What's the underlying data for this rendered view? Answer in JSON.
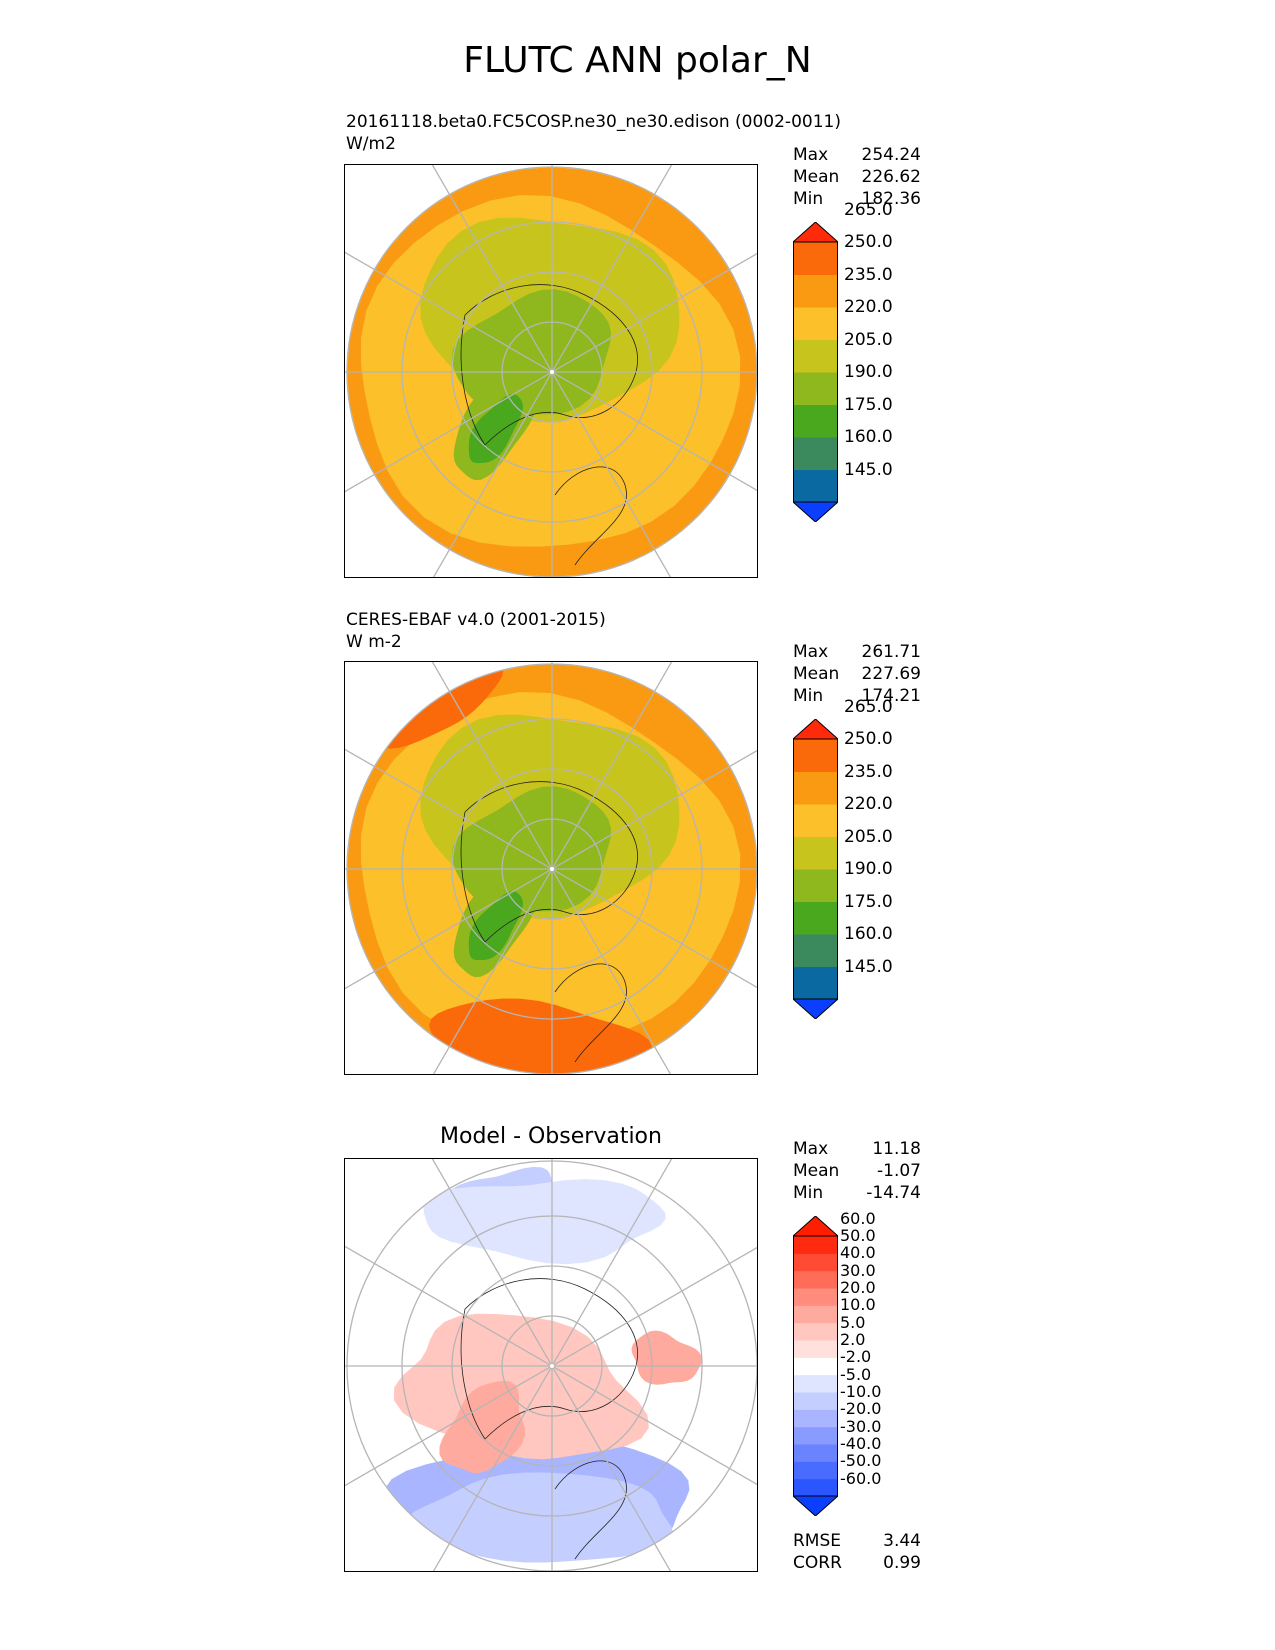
{
  "title": "FLUTC ANN polar_N",
  "panels": [
    {
      "id": "model",
      "title": "20161118.beta0.FC5COSP.ne30_ne30.edison (0002-0011)",
      "units": "W/m2",
      "stats": [
        {
          "label": "Max",
          "value": "254.24"
        },
        {
          "label": "Mean",
          "value": "226.62"
        },
        {
          "label": "Min",
          "value": "182.36"
        }
      ]
    },
    {
      "id": "obs",
      "title": "CERES-EBAF v4.0 (2001-2015)",
      "units": "W m-2",
      "stats": [
        {
          "label": "Max",
          "value": "261.71"
        },
        {
          "label": "Mean",
          "value": "227.69"
        },
        {
          "label": "Min",
          "value": "174.21"
        }
      ]
    },
    {
      "id": "diff",
      "title": "Model - Observation",
      "stats": [
        {
          "label": "Max",
          "value": "11.18"
        },
        {
          "label": "Mean",
          "value": "-1.07"
        },
        {
          "label": "Min",
          "value": "-14.74"
        }
      ],
      "metrics": [
        {
          "label": "RMSE",
          "value": "3.44"
        },
        {
          "label": "CORR",
          "value": "0.99"
        }
      ]
    }
  ],
  "chart_data": [
    {
      "type": "heatmap",
      "projection": "north polar stereographic",
      "title": "20161118.beta0.FC5COSP.ne30_ne30.edison (0002-0011)",
      "units": "W/m2",
      "levels": [
        145.0,
        160.0,
        175.0,
        190.0,
        205.0,
        220.0,
        235.0,
        250.0,
        265.0
      ],
      "colors": [
        "#0a3fff",
        "#0a69a0",
        "#3a8a5e",
        "#4aa81e",
        "#8fb81e",
        "#c8c41e",
        "#fbc02a",
        "#fa9a12",
        "#fa6a0a",
        "#ff2a0a"
      ],
      "stats": {
        "max": 254.24,
        "mean": 226.62,
        "min": 182.36
      }
    },
    {
      "type": "heatmap",
      "projection": "north polar stereographic",
      "title": "CERES-EBAF v4.0 (2001-2015)",
      "units": "W m-2",
      "levels": [
        145.0,
        160.0,
        175.0,
        190.0,
        205.0,
        220.0,
        235.0,
        250.0,
        265.0
      ],
      "colors": [
        "#0a3fff",
        "#0a69a0",
        "#3a8a5e",
        "#4aa81e",
        "#8fb81e",
        "#c8c41e",
        "#fbc02a",
        "#fa9a12",
        "#fa6a0a",
        "#ff2a0a"
      ],
      "stats": {
        "max": 261.71,
        "mean": 227.69,
        "min": 174.21
      }
    },
    {
      "type": "heatmap",
      "projection": "north polar stereographic",
      "title": "Model - Observation",
      "levels": [
        -60.0,
        -50.0,
        -40.0,
        -30.0,
        -20.0,
        -10.0,
        -5.0,
        -2.0,
        2.0,
        5.0,
        10.0,
        20.0,
        30.0,
        40.0,
        50.0,
        60.0
      ],
      "colors": [
        "#0a3fff",
        "#2a55ff",
        "#4a6bff",
        "#6a83ff",
        "#8a9bff",
        "#a9b6ff",
        "#c5cfff",
        "#dfe5ff",
        "#ffffff",
        "#ffe0dc",
        "#ffc7bf",
        "#ffaa9e",
        "#ff8c7c",
        "#ff6c58",
        "#ff4a34",
        "#ff2a10",
        "#ff1e00"
      ],
      "stats": {
        "max": 11.18,
        "mean": -1.07,
        "min": -14.74
      },
      "rmse": 3.44,
      "corr": 0.99
    }
  ]
}
